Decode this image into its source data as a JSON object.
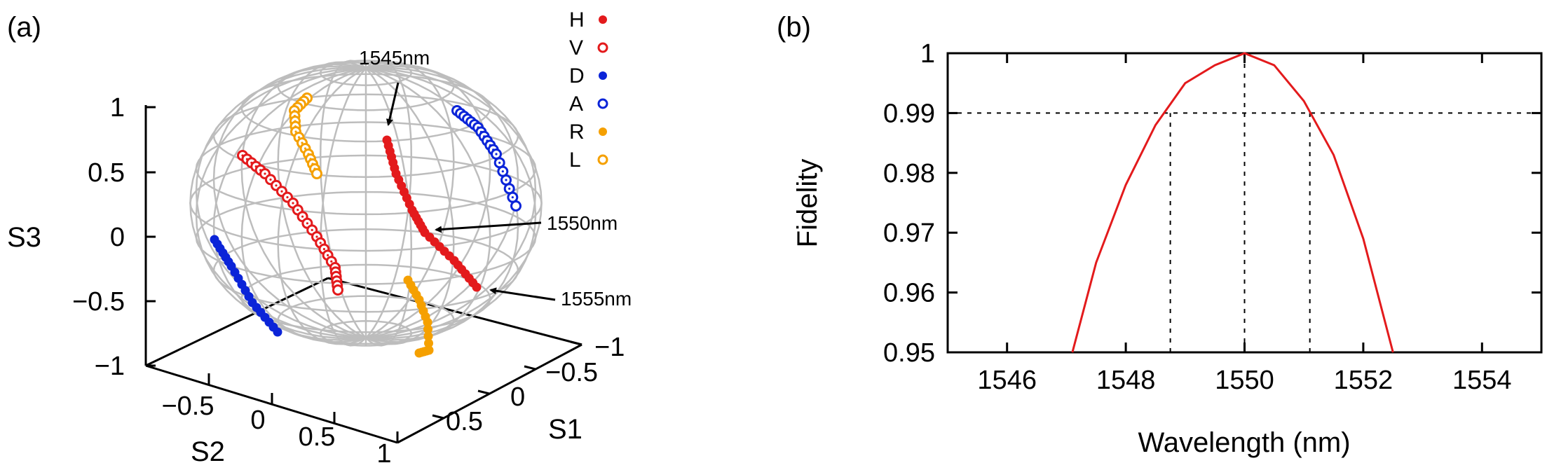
{
  "panels": {
    "a_label": "(a)",
    "b_label": "(b)"
  },
  "sphere": {
    "axes": {
      "s3_label": "S3",
      "s2_label": "S2",
      "s1_label": "S1",
      "s3_ticks": [
        "1",
        "0.5",
        "0",
        "−0.5",
        "−1"
      ],
      "s2_ticks": [
        "−0.5",
        "0",
        "0.5",
        "1"
      ],
      "s1_ticks": [
        "−1",
        "−0.5",
        "0",
        "0.5"
      ]
    },
    "legend": [
      {
        "label": "H",
        "color": "#e31a1c",
        "style": "filled"
      },
      {
        "label": "V",
        "color": "#e31a1c",
        "style": "open"
      },
      {
        "label": "D",
        "color": "#0b24d8",
        "style": "filled"
      },
      {
        "label": "A",
        "color": "#0b24d8",
        "style": "open"
      },
      {
        "label": "R",
        "color": "#f5a000",
        "style": "filled"
      },
      {
        "label": "L",
        "color": "#f5a000",
        "style": "open"
      }
    ],
    "annotations": [
      "1545nm",
      "1550nm",
      "1555nm"
    ]
  },
  "chart_data": {
    "type": "line",
    "title": "",
    "xlabel": "Wavelength (nm)",
    "ylabel": "Fidelity",
    "xlim": [
      1545,
      1555
    ],
    "ylim": [
      0.95,
      1.0
    ],
    "xticks": [
      1546,
      1548,
      1550,
      1552,
      1554
    ],
    "yticks": [
      0.95,
      0.96,
      0.97,
      0.98,
      0.99,
      1.0
    ],
    "ytick_labels": [
      "0.95",
      "0.96",
      "0.97",
      "0.98",
      "0.99",
      "1"
    ],
    "xtick_labels": [
      "1546",
      "1548",
      "1550",
      "1552",
      "1554"
    ],
    "series": [
      {
        "color": "#e31a1c",
        "x": [
          1547.1,
          1547.5,
          1548.0,
          1548.5,
          1549.0,
          1549.5,
          1550.0,
          1550.5,
          1551.0,
          1551.5,
          1552.0,
          1552.5
        ],
        "y": [
          0.95,
          0.965,
          0.978,
          0.988,
          0.995,
          0.998,
          1.0,
          0.998,
          0.992,
          0.983,
          0.969,
          0.95
        ]
      }
    ],
    "reference_lines": {
      "horizontal": [
        0.99
      ],
      "vertical": [
        1548.75,
        1550.0,
        1551.1
      ]
    },
    "grid": false
  }
}
